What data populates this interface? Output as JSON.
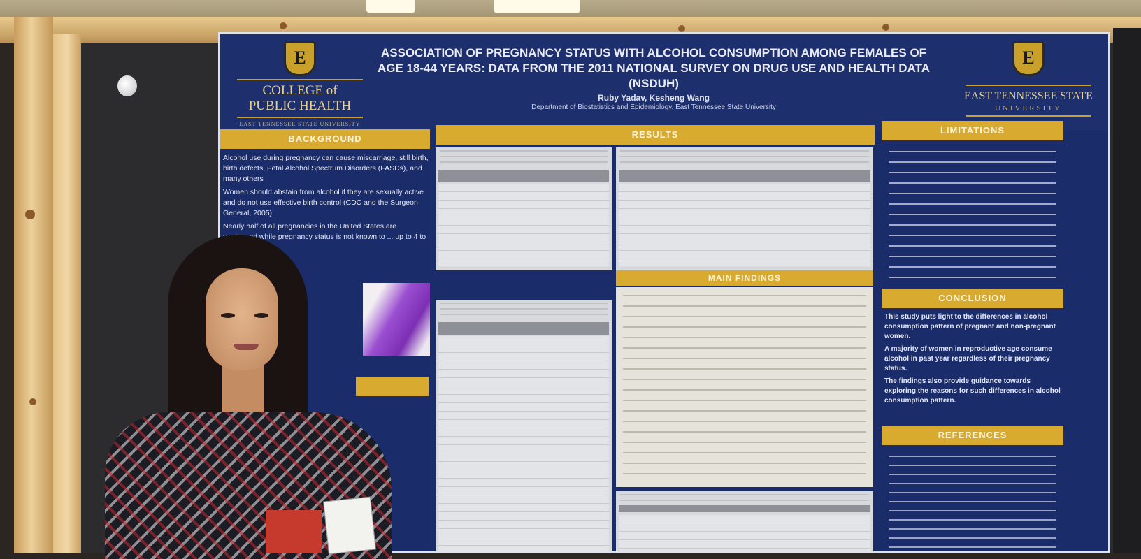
{
  "poster": {
    "title": "ASSOCIATION OF PREGNANCY STATUS WITH ALCOHOL CONSUMPTION AMONG FEMALES OF AGE 18-44 YEARS: DATA FROM THE 2011 NATIONAL SURVEY ON DRUG USE AND HEALTH DATA (NSDUH)",
    "authors": "Ruby Yadav, Kesheng Wang",
    "department": "Department of Biostatistics and Epidemiology, East Tennessee State University",
    "logo_left": {
      "letter": "E",
      "line1": "COLLEGE of",
      "line2": "PUBLIC HEALTH",
      "line3": "EAST TENNESSEE STATE UNIVERSITY"
    },
    "logo_right": {
      "letter": "E",
      "line1": "EAST TENNESSEE STATE",
      "line2": "UNIVERSITY"
    },
    "sections": {
      "background": "BACKGROUND",
      "results": "RESULTS",
      "limitations": "LIMITATIONS",
      "main_findings": "MAIN FINDINGS",
      "conclusion": "CONCLUSION",
      "references": "REFERENCES"
    },
    "background_text": [
      "Alcohol use during pregnancy can cause miscarriage, still birth, birth defects, Fetal Alcohol Spectrum Disorders (FASDs), and many others",
      "Women should abstain from alcohol if they are sexually active and do not use effective birth control (CDC and the Surgeon General, 2005).",
      "Nearly half of all pregnancies in the United States are unplanned while pregnancy status is not known to ... up to 4 to 6 weeks."
    ],
    "conclusion_text": [
      "This study puts light to the differences in alcohol consumption pattern of pregnant and non-pregnant women.",
      "A majority of women in reproductive age consume alcohol in past year regardless of their pregnancy status.",
      "The findings also provide guidance towards exploring the reasons for such differences in alcohol consumption pattern."
    ]
  },
  "colors": {
    "poster_blue": "#1b2c6a",
    "section_gold": "#d8aa2f",
    "board": "#2c2c2f",
    "wood": "#e2c286"
  }
}
